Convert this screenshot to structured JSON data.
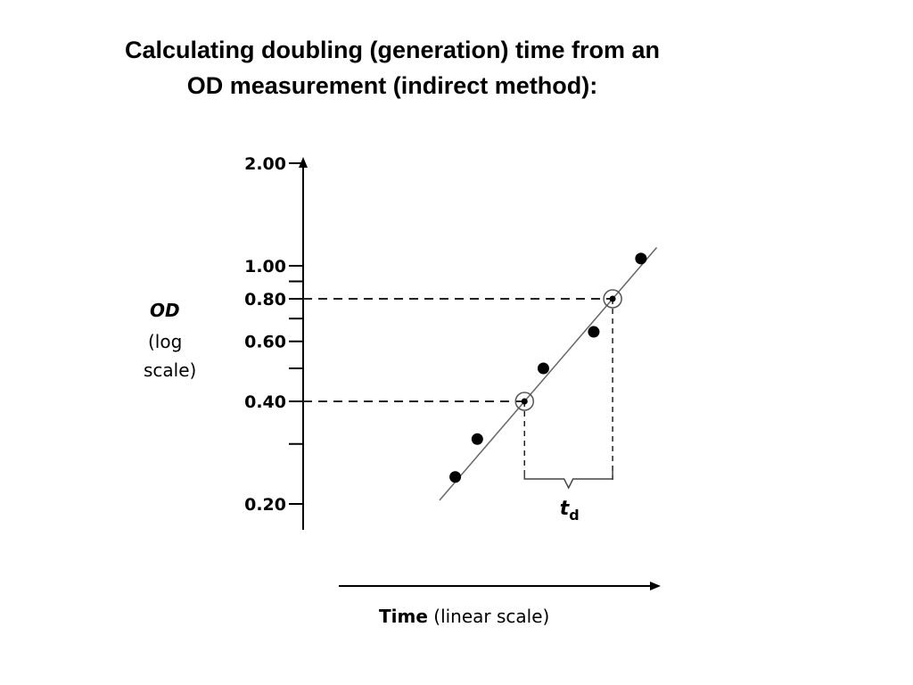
{
  "title": {
    "line1": "Calculating doubling (generation) time from an",
    "line2": "OD measurement (indirect method):"
  },
  "chart_data": {
    "type": "scatter",
    "title": "Calculating doubling (generation) time from an OD measurement (indirect method):",
    "y_scale": "log",
    "ylim": [
      0.18,
      2.0
    ],
    "y_ticks_labeled": [
      {
        "value": 2.0,
        "label": "2.00"
      },
      {
        "value": 1.0,
        "label": "1.00"
      },
      {
        "value": 0.8,
        "label": "0.80"
      },
      {
        "value": 0.6,
        "label": "0.60"
      },
      {
        "value": 0.4,
        "label": "0.40"
      },
      {
        "value": 0.2,
        "label": "0.20"
      }
    ],
    "y_ticks_minor": [
      0.9,
      0.7,
      0.5,
      0.3
    ],
    "ylabel": {
      "main": "OD",
      "line2": "(log",
      "line3": "scale)"
    },
    "xlabel": {
      "bold": "Time",
      "normal": " (linear scale)"
    },
    "xlim": [
      0,
      10
    ],
    "points": [
      {
        "x": 3.7,
        "y": 0.24
      },
      {
        "x": 4.4,
        "y": 0.31
      },
      {
        "x": 5.9,
        "y": 0.4,
        "circled": true
      },
      {
        "x": 6.5,
        "y": 0.5
      },
      {
        "x": 8.1,
        "y": 0.64
      },
      {
        "x": 8.7,
        "y": 0.8,
        "circled": true
      },
      {
        "x": 9.6,
        "y": 1.05
      }
    ],
    "fit_line": {
      "x_start": 3.2,
      "x_end": 10.1
    },
    "guides": [
      {
        "y": 0.4,
        "x": 5.9
      },
      {
        "y": 0.8,
        "x": 8.7
      }
    ],
    "bracket": {
      "x_start": 5.9,
      "x_end": 8.7,
      "label_main": "t",
      "label_sub": "d"
    }
  }
}
